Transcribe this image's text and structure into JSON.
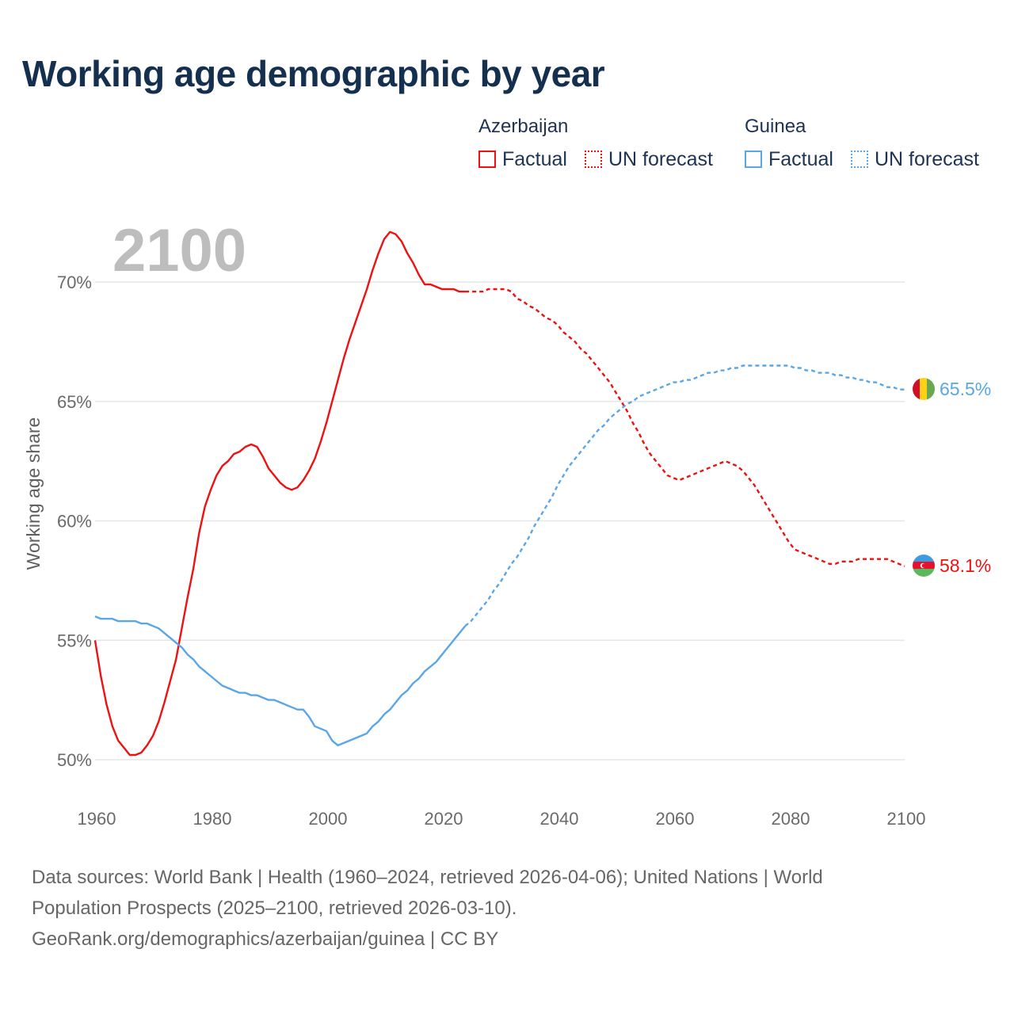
{
  "title": "Working age demographic by year",
  "legend": {
    "groups": [
      {
        "name": "Azerbaijan",
        "color": "#ee1111",
        "factual_label": "Factual",
        "forecast_label": "UN forecast"
      },
      {
        "name": "Guinea",
        "color": "#5aa6e6",
        "factual_label": "Factual",
        "forecast_label": "UN forecast"
      }
    ]
  },
  "colors": {
    "azerbaijan": "#ee1111",
    "guinea": "#5aa6e6",
    "grid": "#e6e6e6",
    "year_label": "#bdbdbd"
  },
  "chart_data": {
    "type": "line",
    "title": "Working age demographic by year",
    "year_label": "2100",
    "xlabel": "",
    "ylabel": "Working age share",
    "xlim": [
      1960,
      2100
    ],
    "ylim": [
      50,
      72
    ],
    "x_ticks": [
      "1960",
      "1980",
      "2000",
      "2020",
      "2040",
      "2060",
      "2080",
      "2100"
    ],
    "x_tick_values": [
      1960,
      1980,
      2000,
      2020,
      2040,
      2060,
      2080,
      2100
    ],
    "y_ticks": [
      "50%",
      "55%",
      "60%",
      "65%",
      "70%"
    ],
    "y_tick_values": [
      50,
      55,
      60,
      65,
      70
    ],
    "grid": true,
    "factual_until": 2024,
    "series": [
      {
        "name": "Azerbaijan",
        "color": "#ee1111",
        "end_label": "58.1%",
        "flag": "azerbaijan-flag",
        "points": [
          [
            1960,
            55.0
          ],
          [
            1961,
            53.5
          ],
          [
            1962,
            52.3
          ],
          [
            1963,
            51.4
          ],
          [
            1964,
            50.8
          ],
          [
            1965,
            50.5
          ],
          [
            1966,
            50.2
          ],
          [
            1967,
            50.2
          ],
          [
            1968,
            50.3
          ],
          [
            1969,
            50.6
          ],
          [
            1970,
            51.0
          ],
          [
            1971,
            51.6
          ],
          [
            1972,
            52.4
          ],
          [
            1973,
            53.3
          ],
          [
            1974,
            54.2
          ],
          [
            1975,
            55.5
          ],
          [
            1976,
            56.8
          ],
          [
            1977,
            58.0
          ],
          [
            1978,
            59.5
          ],
          [
            1979,
            60.6
          ],
          [
            1980,
            61.3
          ],
          [
            1981,
            61.9
          ],
          [
            1982,
            62.3
          ],
          [
            1983,
            62.5
          ],
          [
            1984,
            62.8
          ],
          [
            1985,
            62.9
          ],
          [
            1986,
            63.1
          ],
          [
            1987,
            63.2
          ],
          [
            1988,
            63.1
          ],
          [
            1989,
            62.7
          ],
          [
            1990,
            62.2
          ],
          [
            1991,
            61.9
          ],
          [
            1992,
            61.6
          ],
          [
            1993,
            61.4
          ],
          [
            1994,
            61.3
          ],
          [
            1995,
            61.4
          ],
          [
            1996,
            61.7
          ],
          [
            1997,
            62.1
          ],
          [
            1998,
            62.6
          ],
          [
            1999,
            63.3
          ],
          [
            2000,
            64.1
          ],
          [
            2001,
            65.0
          ],
          [
            2002,
            65.9
          ],
          [
            2003,
            66.8
          ],
          [
            2004,
            67.6
          ],
          [
            2005,
            68.3
          ],
          [
            2006,
            69.0
          ],
          [
            2007,
            69.7
          ],
          [
            2008,
            70.5
          ],
          [
            2009,
            71.2
          ],
          [
            2010,
            71.8
          ],
          [
            2011,
            72.1
          ],
          [
            2012,
            72.0
          ],
          [
            2013,
            71.7
          ],
          [
            2014,
            71.2
          ],
          [
            2015,
            70.8
          ],
          [
            2016,
            70.3
          ],
          [
            2017,
            69.9
          ],
          [
            2018,
            69.9
          ],
          [
            2019,
            69.8
          ],
          [
            2020,
            69.7
          ],
          [
            2021,
            69.7
          ],
          [
            2022,
            69.7
          ],
          [
            2023,
            69.6
          ],
          [
            2024,
            69.6
          ],
          [
            2025,
            69.6
          ],
          [
            2026,
            69.6
          ],
          [
            2027,
            69.6
          ],
          [
            2028,
            69.7
          ],
          [
            2029,
            69.7
          ],
          [
            2030,
            69.7
          ],
          [
            2031,
            69.7
          ],
          [
            2032,
            69.6
          ],
          [
            2033,
            69.3
          ],
          [
            2034,
            69.2
          ],
          [
            2035,
            69.0
          ],
          [
            2036,
            68.9
          ],
          [
            2037,
            68.7
          ],
          [
            2038,
            68.5
          ],
          [
            2039,
            68.4
          ],
          [
            2040,
            68.2
          ],
          [
            2041,
            67.9
          ],
          [
            2042,
            67.7
          ],
          [
            2043,
            67.5
          ],
          [
            2044,
            67.2
          ],
          [
            2045,
            67.0
          ],
          [
            2046,
            66.7
          ],
          [
            2047,
            66.4
          ],
          [
            2048,
            66.1
          ],
          [
            2049,
            65.8
          ],
          [
            2050,
            65.4
          ],
          [
            2051,
            65.0
          ],
          [
            2052,
            64.6
          ],
          [
            2053,
            64.1
          ],
          [
            2054,
            63.7
          ],
          [
            2055,
            63.2
          ],
          [
            2056,
            62.8
          ],
          [
            2057,
            62.5
          ],
          [
            2058,
            62.2
          ],
          [
            2059,
            61.9
          ],
          [
            2060,
            61.8
          ],
          [
            2061,
            61.7
          ],
          [
            2062,
            61.8
          ],
          [
            2063,
            61.9
          ],
          [
            2064,
            62.0
          ],
          [
            2065,
            62.1
          ],
          [
            2066,
            62.2
          ],
          [
            2067,
            62.3
          ],
          [
            2068,
            62.4
          ],
          [
            2069,
            62.5
          ],
          [
            2070,
            62.4
          ],
          [
            2071,
            62.3
          ],
          [
            2072,
            62.1
          ],
          [
            2073,
            61.8
          ],
          [
            2074,
            61.5
          ],
          [
            2075,
            61.1
          ],
          [
            2076,
            60.7
          ],
          [
            2077,
            60.3
          ],
          [
            2078,
            59.9
          ],
          [
            2079,
            59.5
          ],
          [
            2080,
            59.1
          ],
          [
            2081,
            58.8
          ],
          [
            2082,
            58.7
          ],
          [
            2083,
            58.6
          ],
          [
            2084,
            58.5
          ],
          [
            2085,
            58.4
          ],
          [
            2086,
            58.3
          ],
          [
            2087,
            58.2
          ],
          [
            2088,
            58.2
          ],
          [
            2089,
            58.3
          ],
          [
            2090,
            58.3
          ],
          [
            2091,
            58.3
          ],
          [
            2092,
            58.4
          ],
          [
            2093,
            58.4
          ],
          [
            2094,
            58.4
          ],
          [
            2095,
            58.4
          ],
          [
            2096,
            58.4
          ],
          [
            2097,
            58.4
          ],
          [
            2098,
            58.3
          ],
          [
            2099,
            58.2
          ],
          [
            2100,
            58.1
          ]
        ]
      },
      {
        "name": "Guinea",
        "color": "#5aa6e6",
        "end_label": "65.5%",
        "flag": "guinea-flag",
        "points": [
          [
            1960,
            56.0
          ],
          [
            1961,
            55.9
          ],
          [
            1962,
            55.9
          ],
          [
            1963,
            55.9
          ],
          [
            1964,
            55.8
          ],
          [
            1965,
            55.8
          ],
          [
            1966,
            55.8
          ],
          [
            1967,
            55.8
          ],
          [
            1968,
            55.7
          ],
          [
            1969,
            55.7
          ],
          [
            1970,
            55.6
          ],
          [
            1971,
            55.5
          ],
          [
            1972,
            55.3
          ],
          [
            1973,
            55.1
          ],
          [
            1974,
            54.9
          ],
          [
            1975,
            54.7
          ],
          [
            1976,
            54.4
          ],
          [
            1977,
            54.2
          ],
          [
            1978,
            53.9
          ],
          [
            1979,
            53.7
          ],
          [
            1980,
            53.5
          ],
          [
            1981,
            53.3
          ],
          [
            1982,
            53.1
          ],
          [
            1983,
            53.0
          ],
          [
            1984,
            52.9
          ],
          [
            1985,
            52.8
          ],
          [
            1986,
            52.8
          ],
          [
            1987,
            52.7
          ],
          [
            1988,
            52.7
          ],
          [
            1989,
            52.6
          ],
          [
            1990,
            52.5
          ],
          [
            1991,
            52.5
          ],
          [
            1992,
            52.4
          ],
          [
            1993,
            52.3
          ],
          [
            1994,
            52.2
          ],
          [
            1995,
            52.1
          ],
          [
            1996,
            52.1
          ],
          [
            1997,
            51.8
          ],
          [
            1998,
            51.4
          ],
          [
            1999,
            51.3
          ],
          [
            2000,
            51.2
          ],
          [
            2001,
            50.8
          ],
          [
            2002,
            50.6
          ],
          [
            2003,
            50.7
          ],
          [
            2004,
            50.8
          ],
          [
            2005,
            50.9
          ],
          [
            2006,
            51.0
          ],
          [
            2007,
            51.1
          ],
          [
            2008,
            51.4
          ],
          [
            2009,
            51.6
          ],
          [
            2010,
            51.9
          ],
          [
            2011,
            52.1
          ],
          [
            2012,
            52.4
          ],
          [
            2013,
            52.7
          ],
          [
            2014,
            52.9
          ],
          [
            2015,
            53.2
          ],
          [
            2016,
            53.4
          ],
          [
            2017,
            53.7
          ],
          [
            2018,
            53.9
          ],
          [
            2019,
            54.1
          ],
          [
            2020,
            54.4
          ],
          [
            2021,
            54.7
          ],
          [
            2022,
            55.0
          ],
          [
            2023,
            55.3
          ],
          [
            2024,
            55.6
          ],
          [
            2025,
            55.8
          ],
          [
            2026,
            56.1
          ],
          [
            2027,
            56.4
          ],
          [
            2028,
            56.7
          ],
          [
            2029,
            57.1
          ],
          [
            2030,
            57.4
          ],
          [
            2031,
            57.8
          ],
          [
            2032,
            58.2
          ],
          [
            2033,
            58.5
          ],
          [
            2034,
            58.9
          ],
          [
            2035,
            59.3
          ],
          [
            2036,
            59.8
          ],
          [
            2037,
            60.2
          ],
          [
            2038,
            60.6
          ],
          [
            2039,
            61.0
          ],
          [
            2040,
            61.5
          ],
          [
            2041,
            61.9
          ],
          [
            2042,
            62.3
          ],
          [
            2043,
            62.6
          ],
          [
            2044,
            62.9
          ],
          [
            2045,
            63.2
          ],
          [
            2046,
            63.5
          ],
          [
            2047,
            63.8
          ],
          [
            2048,
            64.0
          ],
          [
            2049,
            64.3
          ],
          [
            2050,
            64.5
          ],
          [
            2051,
            64.7
          ],
          [
            2052,
            64.9
          ],
          [
            2053,
            65.0
          ],
          [
            2054,
            65.2
          ],
          [
            2055,
            65.3
          ],
          [
            2056,
            65.4
          ],
          [
            2057,
            65.5
          ],
          [
            2058,
            65.6
          ],
          [
            2059,
            65.7
          ],
          [
            2060,
            65.8
          ],
          [
            2061,
            65.8
          ],
          [
            2062,
            65.9
          ],
          [
            2063,
            65.9
          ],
          [
            2064,
            66.0
          ],
          [
            2065,
            66.1
          ],
          [
            2066,
            66.2
          ],
          [
            2067,
            66.2
          ],
          [
            2068,
            66.3
          ],
          [
            2069,
            66.3
          ],
          [
            2070,
            66.4
          ],
          [
            2071,
            66.4
          ],
          [
            2072,
            66.5
          ],
          [
            2073,
            66.5
          ],
          [
            2074,
            66.5
          ],
          [
            2075,
            66.5
          ],
          [
            2076,
            66.5
          ],
          [
            2077,
            66.5
          ],
          [
            2078,
            66.5
          ],
          [
            2079,
            66.5
          ],
          [
            2080,
            66.5
          ],
          [
            2081,
            66.4
          ],
          [
            2082,
            66.4
          ],
          [
            2083,
            66.3
          ],
          [
            2084,
            66.3
          ],
          [
            2085,
            66.2
          ],
          [
            2086,
            66.2
          ],
          [
            2087,
            66.2
          ],
          [
            2088,
            66.1
          ],
          [
            2089,
            66.1
          ],
          [
            2090,
            66.0
          ],
          [
            2091,
            66.0
          ],
          [
            2092,
            65.9
          ],
          [
            2093,
            65.9
          ],
          [
            2094,
            65.8
          ],
          [
            2095,
            65.8
          ],
          [
            2096,
            65.7
          ],
          [
            2097,
            65.6
          ],
          [
            2098,
            65.6
          ],
          [
            2099,
            65.5
          ],
          [
            2100,
            65.5
          ]
        ]
      }
    ]
  },
  "footer": {
    "line1": "Data sources: World Bank | Health (1960–2024, retrieved 2026-04-06); United Nations | World",
    "line2": "Population Prospects (2025–2100, retrieved 2026-03-10).",
    "line3": "GeoRank.org/demographics/azerbaijan/guinea | CC BY"
  }
}
